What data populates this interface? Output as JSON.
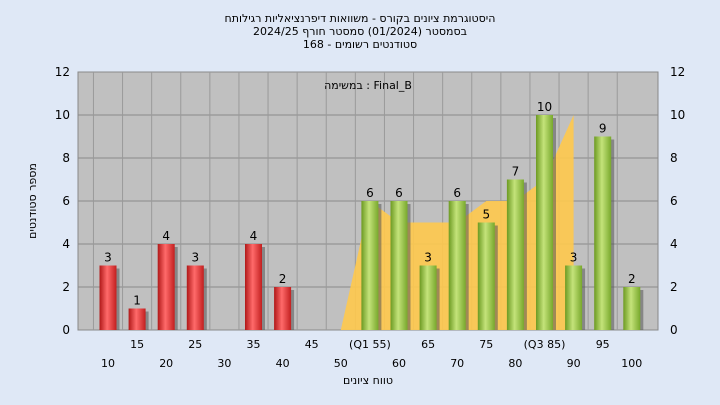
{
  "chart_data": {
    "type": "bar",
    "title_lines": [
      "היסטוגרמת ציונים בקורס - משוואות דיפרנציאליות רגילותח",
      "בסמסטר  (01/2024)  סמסטר חורף  2024/25",
      "סטודנטים רשומים - 168"
    ],
    "legend_label": "במשימה : Final_B",
    "xlabel": "טווח ציונים",
    "ylabel": "מספר סטודנטים",
    "ylim": [
      0,
      12
    ],
    "yticks": [
      0,
      2,
      4,
      6,
      8,
      10,
      12
    ],
    "grid": true,
    "categories": [
      "10",
      "15",
      "20",
      "25",
      "30",
      "35",
      "40",
      "45",
      "50",
      "55",
      "60",
      "65",
      "70",
      "75",
      "80",
      "85",
      "90",
      "95",
      "100"
    ],
    "category_labels": [
      "10",
      "15",
      "20",
      "25",
      "30",
      "35",
      "40",
      "45",
      "50",
      "(Q1 55)",
      "60",
      "65",
      "70",
      "75",
      "80",
      "(Q3 85)",
      "90",
      "95",
      "100"
    ],
    "values": [
      3,
      1,
      4,
      3,
      0,
      4,
      2,
      0,
      0,
      6,
      6,
      3,
      6,
      5,
      7,
      10,
      3,
      9,
      2
    ],
    "value_labels": [
      "3",
      "1",
      "4",
      "3",
      "",
      "4",
      "2",
      "",
      "",
      "6",
      "6",
      "3",
      "6",
      "5",
      "7",
      "10",
      "3",
      "9",
      "2"
    ],
    "bar_colors": [
      "red",
      "red",
      "red",
      "red",
      "red",
      "red",
      "red",
      "red",
      "red",
      "green",
      "green",
      "green",
      "green",
      "green",
      "green",
      "green",
      "green",
      "green",
      "green"
    ],
    "band_upper": [
      6,
      5,
      5,
      5,
      6,
      6,
      7,
      10
    ],
    "band_lower": [
      0,
      0,
      0,
      0,
      0,
      0,
      0,
      0
    ],
    "colors": {
      "red": "#e23434",
      "green": "#8fc03e",
      "band": "#ffc94d",
      "plot_bg": "#c0c0c0",
      "page_bg": "#dfe8f6"
    }
  }
}
